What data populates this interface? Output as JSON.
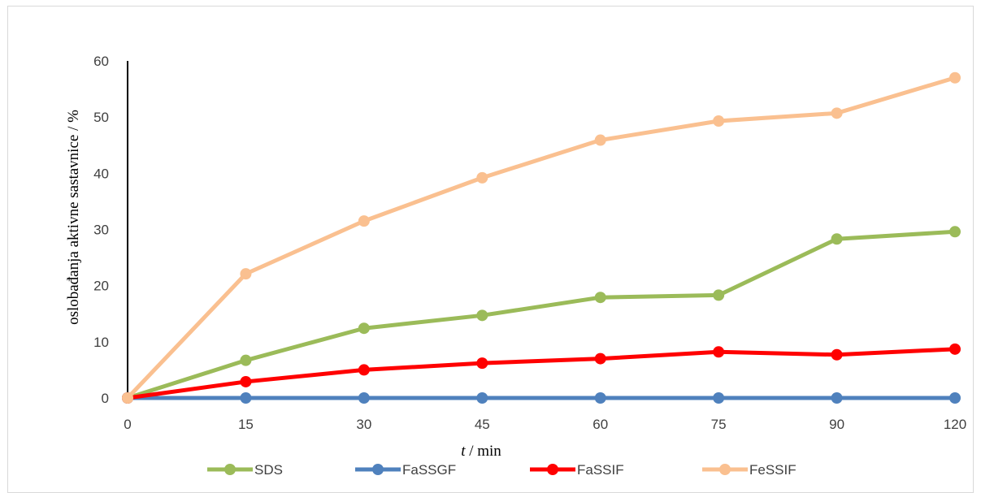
{
  "chart_data": {
    "type": "line",
    "title": "",
    "xlabel_italic": "t",
    "xlabel_rest": " / min",
    "ylabel": "oslobađanja aktivne sastavnice / %",
    "categories": [
      "0",
      "15",
      "30",
      "45",
      "60",
      "75",
      "90",
      "120"
    ],
    "ylim": [
      0,
      60
    ],
    "yticks": [
      0,
      10,
      20,
      30,
      40,
      50,
      60
    ],
    "grid": false,
    "legend_position": "bottom",
    "series": [
      {
        "name": "SDS",
        "color": "#9BBB59",
        "values": [
          0,
          6.7,
          12.4,
          14.7,
          17.9,
          18.3,
          28.3,
          29.6
        ]
      },
      {
        "name": "FaSSGF",
        "color": "#4F81BD",
        "values": [
          0,
          0,
          0,
          0,
          0,
          0,
          0,
          0
        ]
      },
      {
        "name": "FaSSIF",
        "color": "#FF0000",
        "values": [
          0,
          2.9,
          5.0,
          6.2,
          7.0,
          8.2,
          7.7,
          8.7
        ]
      },
      {
        "name": "FeSSIF",
        "color": "#FAC090",
        "values": [
          0,
          22.1,
          31.5,
          39.2,
          45.9,
          49.3,
          50.7,
          57.0
        ]
      }
    ]
  }
}
